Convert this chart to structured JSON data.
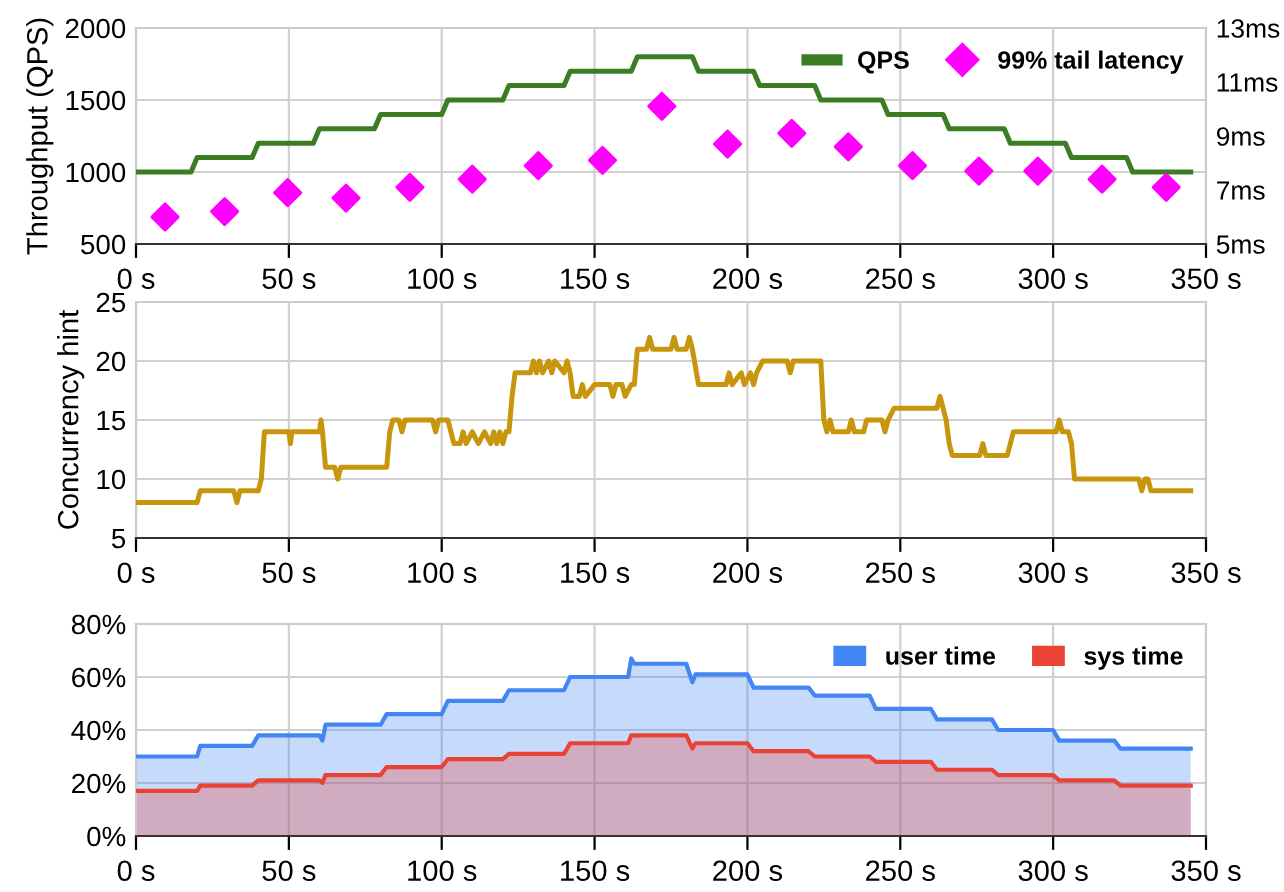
{
  "chart_data": [
    {
      "type": "line",
      "ylabel": "Throughput (QPS)",
      "ylim": [
        500,
        2000
      ],
      "yticks": [
        500,
        1000,
        1500,
        2000
      ],
      "y2lim": [
        5,
        13
      ],
      "y2ticks": [
        {
          "value": 5,
          "label": "5ms"
        },
        {
          "value": 7,
          "label": "7ms"
        },
        {
          "value": 9,
          "label": "9ms"
        },
        {
          "value": 11,
          "label": "11ms"
        },
        {
          "value": 13,
          "label": "13ms"
        }
      ],
      "xlim": [
        0,
        350
      ],
      "xticks": [
        {
          "value": 0,
          "label": "0 s"
        },
        {
          "value": 50,
          "label": "50 s"
        },
        {
          "value": 100,
          "label": "100 s"
        },
        {
          "value": 150,
          "label": "150 s"
        },
        {
          "value": 200,
          "label": "200 s"
        },
        {
          "value": 250,
          "label": "250 s"
        },
        {
          "value": 300,
          "label": "300 s"
        },
        {
          "value": 350,
          "label": "350 s"
        }
      ],
      "grid": true,
      "legend": "top right",
      "series": [
        {
          "name": "QPS",
          "type": "line",
          "color": "#3a7d22",
          "marker": "none",
          "x": [
            0,
            18,
            20,
            38,
            40,
            58,
            60,
            78,
            80,
            100,
            102,
            120,
            122,
            140,
            142,
            162,
            164,
            182,
            184,
            202,
            204,
            222,
            224,
            244,
            246,
            264,
            266,
            284,
            286,
            304,
            306,
            324,
            326,
            345
          ],
          "values": [
            1000,
            1000,
            1100,
            1100,
            1200,
            1200,
            1300,
            1300,
            1400,
            1400,
            1500,
            1500,
            1600,
            1600,
            1700,
            1700,
            1800,
            1800,
            1700,
            1700,
            1600,
            1600,
            1500,
            1500,
            1400,
            1400,
            1300,
            1300,
            1200,
            1200,
            1100,
            1100,
            1000,
            1000
          ]
        },
        {
          "name": "99% tail latency",
          "type": "scatter",
          "axis": "y2",
          "color": "#ff00ff",
          "marker": "diamond",
          "x": [
            9.5,
            29,
            49.6,
            68.7,
            89.6,
            110,
            131.6,
            152.6,
            172,
            193.5,
            214.5,
            233,
            254,
            275.7,
            295,
            316,
            337
          ],
          "values": [
            6.0,
            6.2,
            6.9,
            6.7,
            7.1,
            7.4,
            7.9,
            8.1,
            10.1,
            8.7,
            9.1,
            8.6,
            7.9,
            7.7,
            7.7,
            7.4,
            7.1
          ]
        }
      ]
    },
    {
      "type": "line",
      "ylabel": "Concurrency hint",
      "ylim": [
        5,
        25
      ],
      "yticks": [
        5,
        10,
        15,
        20,
        25
      ],
      "xlim": [
        0,
        350
      ],
      "xticks": [
        {
          "value": 0,
          "label": "0 s"
        },
        {
          "value": 50,
          "label": "50 s"
        },
        {
          "value": 100,
          "label": "100 s"
        },
        {
          "value": 150,
          "label": "150 s"
        },
        {
          "value": 200,
          "label": "200 s"
        },
        {
          "value": 250,
          "label": "250 s"
        },
        {
          "value": 300,
          "label": "300 s"
        },
        {
          "value": 350,
          "label": "350 s"
        }
      ],
      "grid": true,
      "series": [
        {
          "color": "#c8960c",
          "x": [
            0,
            20,
            21,
            32,
            33,
            34,
            40,
            41,
            42,
            50,
            50.5,
            51,
            60,
            60.5,
            61,
            62,
            65,
            66,
            67,
            82,
            83,
            84,
            86,
            87,
            88,
            97,
            98,
            99,
            102,
            104,
            106,
            107,
            108,
            110,
            112,
            114,
            116,
            117,
            118,
            119,
            120,
            121,
            122,
            123,
            124,
            129,
            130,
            131,
            132,
            133,
            135,
            136,
            137,
            140,
            141,
            142,
            143,
            145,
            146,
            147,
            150,
            155,
            156,
            157,
            159,
            160,
            162,
            163,
            164,
            167,
            168,
            169,
            175,
            176,
            177,
            180,
            181,
            182,
            184,
            193,
            194,
            195,
            198,
            199,
            201,
            202,
            203,
            205,
            213,
            214,
            215,
            224,
            225,
            226,
            227,
            228,
            233,
            234,
            235,
            238,
            239,
            244,
            245,
            246,
            248,
            262,
            263,
            264,
            265,
            266,
            267,
            276,
            277,
            278,
            285,
            287,
            301,
            302,
            303,
            305,
            306,
            307,
            328,
            329,
            330,
            331,
            332,
            345
          ],
          "values": [
            8,
            8,
            9,
            9,
            8,
            9,
            9,
            10,
            14,
            14,
            13,
            14,
            14,
            15,
            14,
            11,
            11,
            10,
            11,
            11,
            14,
            15,
            15,
            14,
            15,
            15,
            14,
            15,
            15,
            13,
            13,
            14,
            13,
            14,
            13,
            14,
            13,
            14,
            13,
            14,
            13,
            14,
            14,
            17,
            19,
            19,
            20,
            19,
            20,
            19,
            20,
            19,
            20,
            19,
            20,
            19,
            17,
            17,
            18,
            17,
            18,
            18,
            17,
            18,
            18,
            17,
            18,
            18,
            21,
            21,
            22,
            21,
            21,
            22,
            21,
            21,
            22,
            21,
            18,
            18,
            19,
            18,
            19,
            18,
            19,
            18,
            19,
            20,
            20,
            19,
            20,
            20,
            15,
            14,
            15,
            14,
            14,
            15,
            14,
            14,
            15,
            15,
            14,
            15,
            16,
            16,
            17,
            16,
            15,
            13,
            12,
            12,
            13,
            12,
            12,
            14,
            14,
            15,
            14,
            14,
            13,
            10,
            10,
            9,
            10,
            10,
            9,
            9
          ]
        }
      ]
    },
    {
      "type": "area",
      "ylim": [
        0,
        80
      ],
      "yticks": [
        {
          "value": 0,
          "label": "0%"
        },
        {
          "value": 20,
          "label": "20%"
        },
        {
          "value": 40,
          "label": "40%"
        },
        {
          "value": 60,
          "label": "60%"
        },
        {
          "value": 80,
          "label": "80%"
        }
      ],
      "xlim": [
        0,
        350
      ],
      "xticks": [
        {
          "value": 0,
          "label": "0 s"
        },
        {
          "value": 50,
          "label": "50 s"
        },
        {
          "value": 100,
          "label": "100 s"
        },
        {
          "value": 150,
          "label": "150 s"
        },
        {
          "value": 200,
          "label": "200 s"
        },
        {
          "value": 250,
          "label": "250 s"
        },
        {
          "value": 300,
          "label": "300 s"
        },
        {
          "value": 350,
          "label": "350 s"
        }
      ],
      "grid": true,
      "legend": "top right",
      "series": [
        {
          "name": "user time",
          "color": "#4285f4",
          "x": [
            0,
            20,
            21,
            38,
            40,
            60,
            61,
            62,
            80,
            82,
            100,
            102,
            120,
            122,
            140,
            142,
            161,
            162,
            163,
            180,
            182,
            183,
            200,
            202,
            220,
            222,
            240,
            242,
            260,
            262,
            280,
            282,
            300,
            302,
            320,
            322,
            345
          ],
          "values": [
            30,
            30,
            34,
            34,
            38,
            38,
            36,
            42,
            42,
            46,
            46,
            51,
            51,
            55,
            55,
            60,
            60,
            67,
            65,
            65,
            58,
            61,
            61,
            56,
            56,
            53,
            53,
            48,
            48,
            44,
            44,
            40,
            40,
            36,
            36,
            33,
            33
          ]
        },
        {
          "name": "sys time",
          "color": "#ea4335",
          "x": [
            0,
            20,
            21,
            38,
            40,
            60,
            61,
            62,
            80,
            82,
            100,
            102,
            120,
            122,
            140,
            142,
            161,
            162,
            180,
            182,
            183,
            200,
            202,
            220,
            222,
            240,
            242,
            260,
            262,
            280,
            282,
            300,
            302,
            320,
            322,
            345
          ],
          "values": [
            17,
            17,
            19,
            19,
            21,
            21,
            20,
            23,
            23,
            26,
            26,
            29,
            29,
            31,
            31,
            35,
            35,
            38,
            38,
            33,
            35,
            35,
            32,
            32,
            30,
            30,
            28,
            28,
            25,
            25,
            23,
            23,
            21,
            21,
            19,
            19
          ]
        }
      ]
    }
  ]
}
